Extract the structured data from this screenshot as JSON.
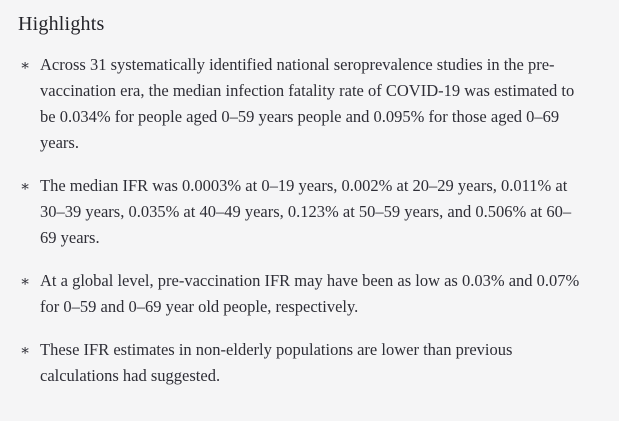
{
  "section": {
    "title": "Highlights",
    "bullet_glyph": "∗",
    "items": [
      "Across 31 systematically identified national seroprevalence studies in the pre-vaccination era, the median infection fatality rate of COVID-19 was estimated to be 0.034% for people aged 0–59 years people and 0.095% for those aged 0–69 years.",
      "The median IFR was 0.0003% at 0–19 years, 0.002% at 20–29 years, 0.011% at 30–39 years, 0.035% at 40–49 years, 0.123% at 50–59 years, and 0.506% at 60–69 years.",
      "At a global level, pre-vaccination IFR may have been as low as 0.03% and 0.07% for 0–59 and 0–69 year old people, respectively.",
      "These IFR estimates in non-elderly populations are lower than previous calculations had suggested."
    ]
  },
  "colors": {
    "background": "#f5f5f6",
    "text": "#2e2e36"
  }
}
